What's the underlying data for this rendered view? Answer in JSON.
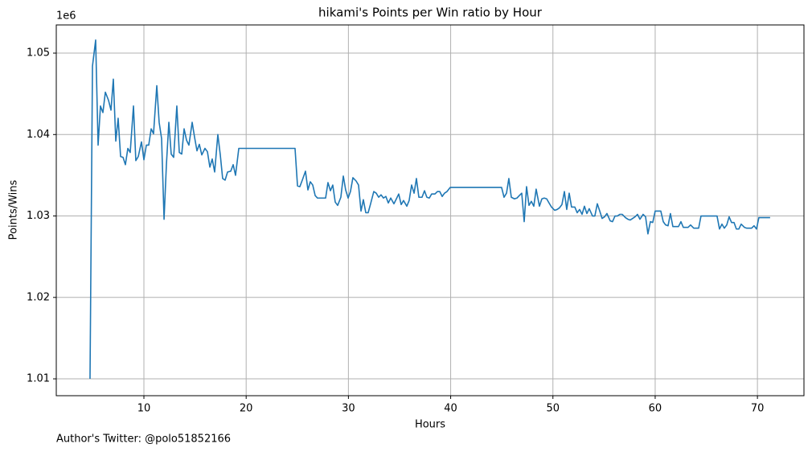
{
  "chart_data": {
    "type": "line",
    "title": "hikami's Points per Win ratio by Hour",
    "x_label": "Hours",
    "y_label": "Points/Wins",
    "y_offset_label": "1e6",
    "footnote": "Author's Twitter: @polo51852166",
    "grid": true,
    "xlim": [
      1.43,
      74.55
    ],
    "ylim": [
      1.00793,
      1.05346
    ],
    "xticks": [
      10,
      20,
      30,
      40,
      50,
      60,
      70
    ],
    "yticks": [
      1.01,
      1.02,
      1.03,
      1.04,
      1.05
    ],
    "x": [
      4.73,
      4.97,
      5.28,
      5.52,
      5.75,
      5.99,
      6.23,
      6.54,
      6.78,
      7.01,
      7.25,
      7.48,
      7.72,
      7.96,
      8.19,
      8.43,
      8.66,
      8.98,
      9.21,
      9.45,
      9.76,
      10.0,
      10.24,
      10.47,
      10.71,
      10.94,
      11.26,
      11.49,
      11.73,
      11.97,
      12.2,
      12.44,
      12.67,
      12.91,
      13.22,
      13.46,
      13.7,
      13.93,
      14.17,
      14.4,
      14.72,
      14.95,
      15.19,
      15.42,
      15.66,
      15.97,
      16.21,
      16.45,
      16.68,
      16.92,
      17.23,
      17.47,
      17.7,
      17.94,
      18.18,
      18.49,
      18.73,
      18.96,
      19.28,
      24.78,
      25.02,
      25.25,
      25.49,
      25.8,
      26.04,
      26.27,
      26.51,
      26.75,
      26.98,
      27.77,
      28.0,
      28.24,
      28.47,
      28.71,
      28.95,
      29.26,
      29.5,
      29.73,
      29.97,
      30.2,
      30.44,
      30.75,
      30.99,
      31.23,
      31.46,
      31.7,
      31.93,
      32.17,
      32.48,
      32.72,
      32.96,
      33.19,
      33.43,
      33.66,
      33.9,
      34.14,
      34.45,
      34.69,
      34.92,
      35.16,
      35.39,
      35.71,
      35.94,
      36.18,
      36.42,
      36.65,
      36.89,
      37.2,
      37.44,
      37.67,
      37.91,
      38.14,
      38.46,
      38.7,
      38.93,
      39.17,
      39.4,
      39.64,
      39.95,
      44.98,
      45.22,
      45.46,
      45.69,
      45.93,
      46.24,
      46.48,
      46.71,
      46.95,
      47.19,
      47.42,
      47.66,
      47.89,
      48.13,
      48.36,
      48.68,
      48.92,
      49.15,
      49.39,
      49.62,
      49.86,
      50.17,
      50.41,
      50.64,
      50.88,
      51.12,
      51.35,
      51.59,
      51.82,
      52.14,
      52.37,
      52.61,
      52.85,
      53.08,
      53.32,
      53.55,
      53.87,
      54.1,
      54.34,
      54.58,
      54.81,
      55.05,
      55.28,
      55.6,
      55.83,
      56.07,
      56.31,
      56.54,
      56.78,
      57.09,
      57.33,
      57.56,
      57.8,
      58.03,
      58.27,
      58.51,
      58.82,
      59.06,
      59.29,
      59.53,
      59.76,
      60.0,
      60.24,
      60.55,
      60.79,
      61.02,
      61.26,
      61.49,
      61.73,
      62.04,
      62.28,
      62.52,
      62.75,
      62.99,
      63.22,
      63.46,
      63.77,
      64.01,
      64.25,
      64.48,
      66.05,
      66.29,
      66.53,
      66.76,
      67.0,
      67.23,
      67.47,
      67.71,
      67.94,
      68.18,
      68.41,
      68.73,
      68.96,
      69.2,
      69.43,
      69.67,
      69.91,
      70.14,
      71.24
    ],
    "series": [
      {
        "name": "Points/Wins",
        "color": "#1f77b4",
        "values": [
          1.01,
          1.0484,
          1.0516,
          1.0387,
          1.0435,
          1.0427,
          1.0452,
          1.0442,
          1.043,
          1.0468,
          1.0392,
          1.042,
          1.0373,
          1.0372,
          1.0363,
          1.0383,
          1.0378,
          1.0435,
          1.0368,
          1.0373,
          1.0391,
          1.0369,
          1.0387,
          1.0387,
          1.0407,
          1.0401,
          1.046,
          1.0415,
          1.0395,
          1.0296,
          1.0363,
          1.0415,
          1.0376,
          1.0372,
          1.0435,
          1.0378,
          1.0376,
          1.0407,
          1.0393,
          1.0387,
          1.0415,
          1.0397,
          1.038,
          1.0388,
          1.0375,
          1.0383,
          1.0379,
          1.036,
          1.037,
          1.0354,
          1.04,
          1.0375,
          1.0346,
          1.0344,
          1.0354,
          1.0355,
          1.0363,
          1.035,
          1.0383,
          1.0383,
          1.0337,
          1.0336,
          1.0344,
          1.0355,
          1.0332,
          1.0342,
          1.0338,
          1.0325,
          1.0322,
          1.0322,
          1.0341,
          1.0331,
          1.0338,
          1.0317,
          1.0313,
          1.0323,
          1.0349,
          1.0332,
          1.0322,
          1.033,
          1.0347,
          1.0343,
          1.0338,
          1.0306,
          1.032,
          1.0304,
          1.0304,
          1.0315,
          1.033,
          1.0328,
          1.0323,
          1.0326,
          1.0322,
          1.0324,
          1.0316,
          1.0322,
          1.0315,
          1.0321,
          1.0327,
          1.0314,
          1.0319,
          1.0312,
          1.0319,
          1.0338,
          1.0328,
          1.0346,
          1.0323,
          1.0323,
          1.0331,
          1.0323,
          1.0322,
          1.0327,
          1.0327,
          1.033,
          1.033,
          1.0324,
          1.0328,
          1.033,
          1.0335,
          1.0335,
          1.0323,
          1.0328,
          1.0346,
          1.0323,
          1.0321,
          1.0322,
          1.0325,
          1.0328,
          1.0293,
          1.0336,
          1.0313,
          1.0318,
          1.0312,
          1.0333,
          1.0312,
          1.0321,
          1.0322,
          1.0321,
          1.0316,
          1.0311,
          1.0307,
          1.0308,
          1.031,
          1.0314,
          1.033,
          1.0308,
          1.0328,
          1.0311,
          1.0311,
          1.0304,
          1.0308,
          1.0302,
          1.0312,
          1.0303,
          1.0309,
          1.03,
          1.03,
          1.0315,
          1.0306,
          1.0297,
          1.0299,
          1.0303,
          1.0294,
          1.0293,
          1.03,
          1.03,
          1.0302,
          1.0302,
          1.0298,
          1.0296,
          1.0295,
          1.0297,
          1.0299,
          1.0302,
          1.0296,
          1.0302,
          1.0299,
          1.0278,
          1.0293,
          1.0292,
          1.0306,
          1.0306,
          1.0306,
          1.0293,
          1.0289,
          1.0288,
          1.0303,
          1.0287,
          1.0287,
          1.0287,
          1.0293,
          1.0286,
          1.0286,
          1.0286,
          1.0289,
          1.0285,
          1.0285,
          1.0285,
          1.03,
          1.03,
          1.0284,
          1.029,
          1.0285,
          1.0289,
          1.0299,
          1.0292,
          1.0292,
          1.0284,
          1.0284,
          1.029,
          1.0286,
          1.0285,
          1.0285,
          1.0285,
          1.0288,
          1.0284,
          1.0298,
          1.0298
        ]
      }
    ]
  }
}
